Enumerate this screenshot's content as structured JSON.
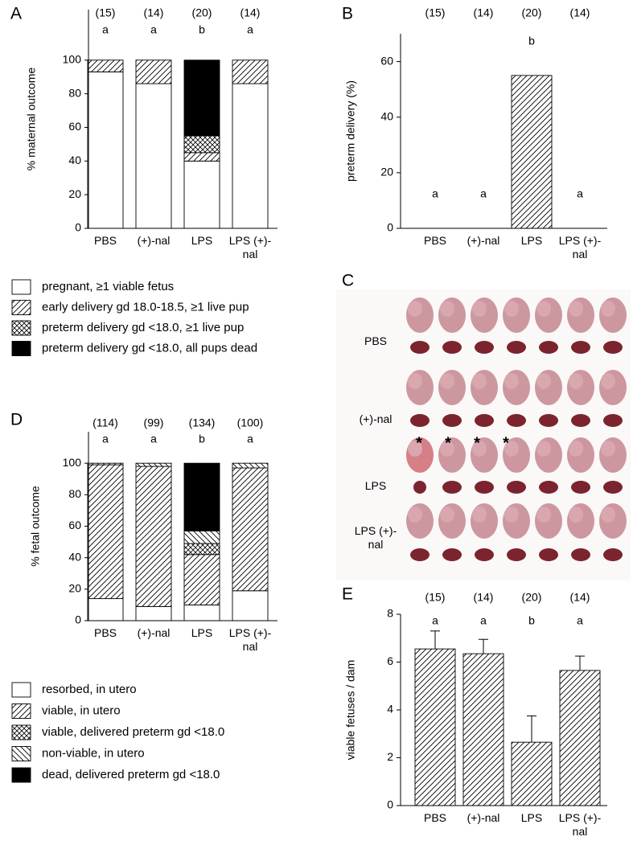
{
  "chart_data": [
    {
      "type": "stacked_bar",
      "panel_label": "A",
      "y_label": "% maternal outcome",
      "categories": [
        "PBS",
        "(+)-nal",
        "LPS",
        "LPS (+)-nal"
      ],
      "n_labels": [
        "(15)",
        "(14)",
        "(20)",
        "(14)"
      ],
      "letters": [
        "a",
        "a",
        "b",
        "a"
      ],
      "ylim": [
        0,
        130
      ],
      "yticks": [
        0,
        20,
        40,
        60,
        80,
        100
      ],
      "series": [
        {
          "name": "pregnant, ≥1 viable fetus",
          "pattern": "none",
          "color": "#ffffff",
          "values": [
            93,
            86,
            40,
            86
          ]
        },
        {
          "name": "early delivery gd 18.0-18.5, ≥1 live pup",
          "pattern": "forward-hatch",
          "color": "#000000",
          "values": [
            7,
            14,
            5,
            14
          ]
        },
        {
          "name": "preterm delivery gd <18.0, ≥1 live pup",
          "pattern": "cross-hatch",
          "color": "#000000",
          "values": [
            0,
            0,
            10,
            0
          ]
        },
        {
          "name": "preterm delivery gd <18.0, all pups dead",
          "pattern": "solid",
          "color": "#000000",
          "values": [
            0,
            0,
            45,
            0
          ]
        }
      ]
    },
    {
      "type": "bar",
      "panel_label": "B",
      "y_label": "preterm delivery  (%)",
      "categories": [
        "PBS",
        "(+)-nal",
        "LPS",
        "LPS (+)-nal"
      ],
      "n_labels": [
        "(15)",
        "(14)",
        "(20)",
        "(14)"
      ],
      "letters": [
        "a",
        "a",
        "b",
        "a"
      ],
      "ylim": [
        0,
        70
      ],
      "yticks": [
        0,
        20,
        40,
        60
      ],
      "pattern": "forward-hatch",
      "color": "#000000",
      "values": [
        0,
        0,
        55,
        0
      ]
    },
    {
      "type": "stacked_bar",
      "panel_label": "D",
      "y_label": "% fetal outcome",
      "categories": [
        "PBS",
        "(+)-nal",
        "LPS",
        "LPS (+)-nal"
      ],
      "n_labels": [
        "(114)",
        "(99)",
        "(134)",
        "(100)"
      ],
      "letters": [
        "a",
        "a",
        "b",
        "a"
      ],
      "ylim": [
        0,
        120
      ],
      "yticks": [
        0,
        20,
        40,
        60,
        80,
        100
      ],
      "series": [
        {
          "name": "resorbed, in utero",
          "pattern": "none",
          "color": "#ffffff",
          "values": [
            14,
            9,
            10,
            19
          ]
        },
        {
          "name": "viable, in utero",
          "pattern": "forward-hatch",
          "color": "#000000",
          "values": [
            85,
            89,
            32,
            78
          ]
        },
        {
          "name": "viable, delivered preterm gd <18.0",
          "pattern": "cross-hatch",
          "color": "#000000",
          "values": [
            0,
            0,
            7,
            0
          ]
        },
        {
          "name": "non-viable, in utero",
          "pattern": "back-hatch",
          "color": "#000000",
          "values": [
            1,
            2,
            8,
            3
          ]
        },
        {
          "name": "dead, delivered preterm gd <18.0",
          "pattern": "solid",
          "color": "#000000",
          "values": [
            0,
            0,
            43,
            0
          ]
        }
      ]
    },
    {
      "type": "bar",
      "panel_label": "E",
      "y_label": "viable fetuses / dam",
      "categories": [
        "PBS",
        "(+)-nal",
        "LPS",
        "LPS (+)-nal"
      ],
      "n_labels": [
        "(15)",
        "(14)",
        "(20)",
        "(14)"
      ],
      "letters": [
        "a",
        "a",
        "b",
        "a"
      ],
      "ylim": [
        0,
        8
      ],
      "yticks": [
        0,
        2,
        4,
        6,
        8
      ],
      "pattern": "forward-hatch",
      "color": "#000000",
      "values": [
        6.55,
        6.35,
        2.65,
        5.65
      ],
      "errors": [
        0.75,
        0.6,
        1.1,
        0.6
      ]
    }
  ],
  "photo_panel": {
    "panel_label": "C",
    "rows": [
      "PBS",
      "(+)-nal",
      "LPS",
      "LPS (+)-nal"
    ],
    "markers": [
      "*",
      "*",
      "*",
      "*"
    ]
  }
}
